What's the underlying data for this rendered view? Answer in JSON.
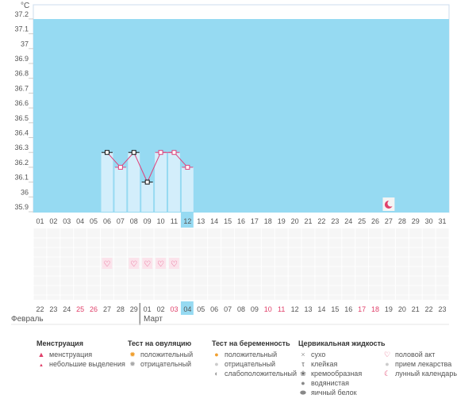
{
  "chart_data": {
    "type": "line",
    "ylabel": "°C",
    "ylim": [
      35.9,
      37.3
    ],
    "yticks": [
      35.9,
      36,
      36.1,
      36.2,
      36.3,
      36.4,
      36.5,
      36.6,
      36.7,
      36.8,
      36.9,
      37,
      37.1,
      37.2
    ],
    "ytick_labels": [
      "35.9",
      "36",
      "36.1",
      "36.2",
      "36.3",
      "36.4",
      "36.5",
      "36.6",
      "36.7",
      "36.8",
      "36.9",
      "37",
      "37.1",
      "37.2"
    ],
    "cycle_days": [
      "01",
      "02",
      "03",
      "04",
      "05",
      "06",
      "07",
      "08",
      "09",
      "10",
      "11",
      "12",
      "13",
      "14",
      "15",
      "16",
      "17",
      "18",
      "19",
      "20",
      "21",
      "22",
      "23",
      "24",
      "25",
      "26",
      "27",
      "28",
      "29",
      "30",
      "31"
    ],
    "today_index": 11,
    "series": [
      {
        "name": "temperature",
        "points": [
          {
            "day": "06",
            "value": 36.3,
            "marker": "black"
          },
          {
            "day": "07",
            "value": 36.2,
            "marker": "pink"
          },
          {
            "day": "08",
            "value": 36.3,
            "marker": "black"
          },
          {
            "day": "09",
            "value": 36.1,
            "marker": "black"
          },
          {
            "day": "10",
            "value": 36.3,
            "marker": "pink"
          },
          {
            "day": "11",
            "value": 36.3,
            "marker": "pink"
          },
          {
            "day": "12",
            "value": 36.2,
            "marker": "pink"
          }
        ]
      }
    ],
    "moon_day": "27",
    "sex_days": [
      "06",
      "08",
      "09",
      "10",
      "11"
    ],
    "dates": [
      {
        "label": "22",
        "red": false
      },
      {
        "label": "23",
        "red": false
      },
      {
        "label": "24",
        "red": false
      },
      {
        "label": "25",
        "red": true
      },
      {
        "label": "26",
        "red": true
      },
      {
        "label": "27",
        "red": false
      },
      {
        "label": "28",
        "red": false
      },
      {
        "label": "29",
        "red": false
      },
      {
        "label": "01",
        "red": false
      },
      {
        "label": "02",
        "red": false
      },
      {
        "label": "03",
        "red": true
      },
      {
        "label": "04",
        "red": false
      },
      {
        "label": "05",
        "red": false
      },
      {
        "label": "06",
        "red": false
      },
      {
        "label": "07",
        "red": false
      },
      {
        "label": "08",
        "red": false
      },
      {
        "label": "09",
        "red": false
      },
      {
        "label": "10",
        "red": true
      },
      {
        "label": "11",
        "red": true
      },
      {
        "label": "12",
        "red": false
      },
      {
        "label": "13",
        "red": false
      },
      {
        "label": "14",
        "red": false
      },
      {
        "label": "15",
        "red": false
      },
      {
        "label": "16",
        "red": false
      },
      {
        "label": "17",
        "red": true
      },
      {
        "label": "18",
        "red": true
      },
      {
        "label": "19",
        "red": false
      },
      {
        "label": "20",
        "red": false
      },
      {
        "label": "21",
        "red": false
      },
      {
        "label": "22",
        "red": false
      },
      {
        "label": "23",
        "red": false
      }
    ],
    "month_feb": "Февраль",
    "month_mar": "Март"
  },
  "colors": {
    "sky": "#96daf2",
    "bar": "#d3eefb",
    "today": "#96daf2",
    "line": "#e0407a",
    "red_text": "#e0406a",
    "text": "#555555"
  },
  "legend": {
    "menstruation": {
      "title": "Менструация",
      "items": [
        "менструация",
        "небольшие выделения"
      ]
    },
    "ovulation": {
      "title": "Тест на овуляцию",
      "items": [
        "положительный",
        "отрицательный"
      ]
    },
    "pregnancy": {
      "title": "Тест на беременность",
      "items": [
        "положительный",
        "отрицательный",
        "слабоположительный"
      ]
    },
    "cervical": {
      "title": "Цервикальная жидкость",
      "items": [
        "сухо",
        "клейкая",
        "кремообразная",
        "водянистая",
        "яичный белок"
      ]
    },
    "other": {
      "items": [
        "половой акт",
        "прием лекарства",
        "лунный календарь"
      ]
    }
  }
}
